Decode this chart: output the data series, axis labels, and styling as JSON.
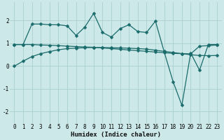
{
  "xlabel": "Humidex (Indice chaleur)",
  "bg_color": "#cce8e8",
  "grid_color": "#aacfcf",
  "line_color": "#1a6b6b",
  "xlim": [
    -0.5,
    23.5
  ],
  "ylim": [
    -2.5,
    2.8
  ],
  "yticks": [
    -2,
    -1,
    0,
    1,
    2
  ],
  "xticks": [
    0,
    1,
    2,
    3,
    4,
    5,
    6,
    7,
    8,
    9,
    10,
    11,
    12,
    13,
    14,
    15,
    16,
    17,
    18,
    19,
    20,
    21,
    22,
    23
  ],
  "series1_x": [
    0,
    1,
    2,
    3,
    4,
    5,
    6,
    7,
    8,
    9,
    10,
    11,
    12,
    13,
    14,
    15,
    16,
    17,
    18,
    19,
    20,
    21,
    22,
    23
  ],
  "series1_y": [
    0.0,
    0.22,
    0.42,
    0.55,
    0.64,
    0.72,
    0.77,
    0.79,
    0.81,
    0.82,
    0.82,
    0.81,
    0.8,
    0.79,
    0.77,
    0.75,
    0.7,
    0.65,
    0.6,
    0.55,
    0.5,
    0.47,
    0.46,
    0.47
  ],
  "series2_x": [
    0,
    1,
    2,
    3,
    4,
    5,
    6,
    7,
    8,
    9,
    10,
    11,
    12,
    13,
    14,
    15,
    16,
    17,
    18,
    19,
    20,
    21,
    22,
    23
  ],
  "series2_y": [
    0.95,
    0.95,
    1.85,
    1.85,
    1.82,
    1.82,
    1.77,
    1.35,
    1.72,
    2.32,
    1.48,
    1.28,
    1.65,
    1.82,
    1.52,
    1.48,
    1.98,
    0.62,
    -0.68,
    -1.72,
    0.58,
    -0.18,
    0.95,
    0.95
  ],
  "series3_x": [
    0,
    1,
    2,
    3,
    4,
    5,
    6,
    7,
    8,
    9,
    10,
    11,
    12,
    13,
    14,
    15,
    16,
    17,
    18,
    19,
    20,
    21,
    22,
    23
  ],
  "series3_y": [
    0.95,
    0.95,
    0.95,
    0.93,
    0.92,
    0.9,
    0.88,
    0.86,
    0.84,
    0.83,
    0.8,
    0.77,
    0.74,
    0.71,
    0.68,
    0.65,
    0.62,
    0.59,
    0.56,
    0.55,
    0.54,
    0.88,
    0.9,
    0.93
  ],
  "marker": "D",
  "markersize": 2.5,
  "linewidth": 0.9,
  "tick_fontsize": 5.5,
  "xlabel_fontsize": 6.5
}
